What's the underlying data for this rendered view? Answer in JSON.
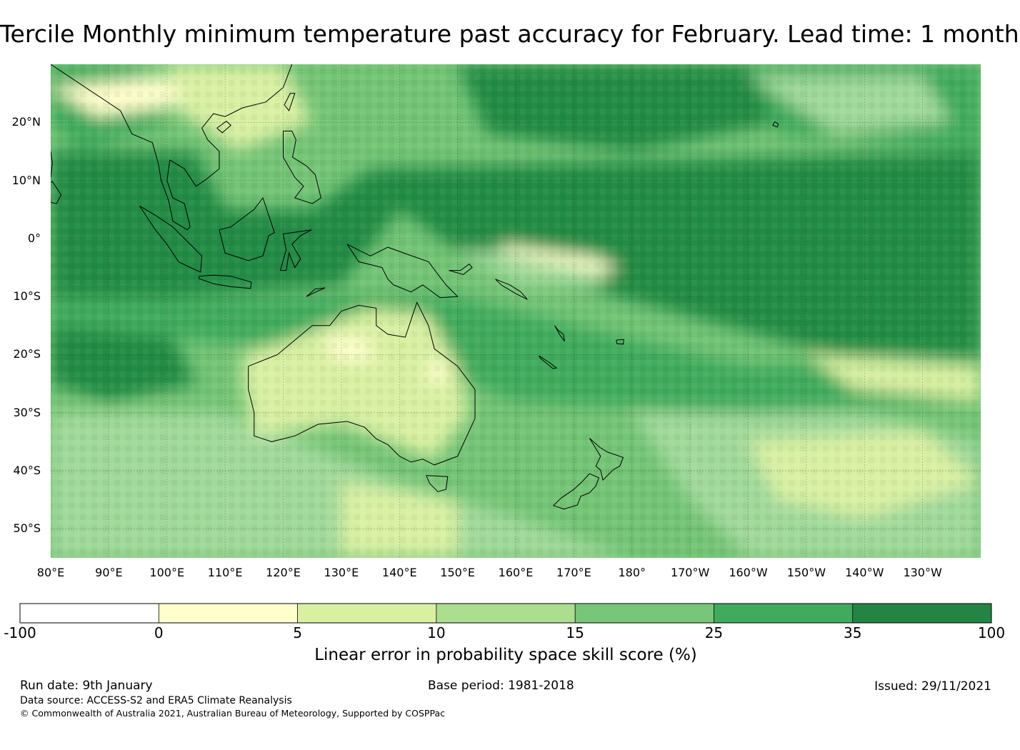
{
  "title": "Tercile Monthly minimum temperature past accuracy for February. Lead time: 1 month",
  "map": {
    "lat_labels": [
      "20°N",
      "10°N",
      "0°",
      "10°S",
      "20°S",
      "30°S",
      "40°S",
      "50°S"
    ],
    "lon_labels": [
      "80°E",
      "90°E",
      "100°E",
      "110°E",
      "120°E",
      "130°E",
      "140°E",
      "150°E",
      "160°E",
      "170°E",
      "180°",
      "170°W",
      "160°W",
      "150°W",
      "140°W",
      "130°W"
    ],
    "lat_range": [
      -55,
      30
    ],
    "lon_range": [
      80,
      240
    ],
    "colors": {
      "ocean_base": "#74c476",
      "very_dark": "#238b45",
      "dark": "#41ab5d",
      "medium": "#74c476",
      "light": "#a1d99b",
      "pale": "#d9f0a3",
      "cream": "#ffffcc",
      "coast": "#000000"
    }
  },
  "colorbar": {
    "ticks": [
      "-100",
      "0",
      "5",
      "10",
      "15",
      "25",
      "35",
      "100"
    ],
    "colors": [
      "#ffffff",
      "#ffffcc",
      "#d9f0a3",
      "#addd8e",
      "#78c679",
      "#41ab5d",
      "#238443"
    ],
    "label": "Linear error in probability space skill score (%)"
  },
  "footer": {
    "run_date": "Run date: 9th January",
    "base_period": "Base period: 1981-2018",
    "issued": "Issued: 29/11/2021",
    "data_source": "Data source: ACCESS-S2 and ERA5 Climate Reanalysis",
    "copyright": "© Commonwealth of Australia 2021, Australian Bureau of Meteorology, Supported by COSPPac"
  }
}
